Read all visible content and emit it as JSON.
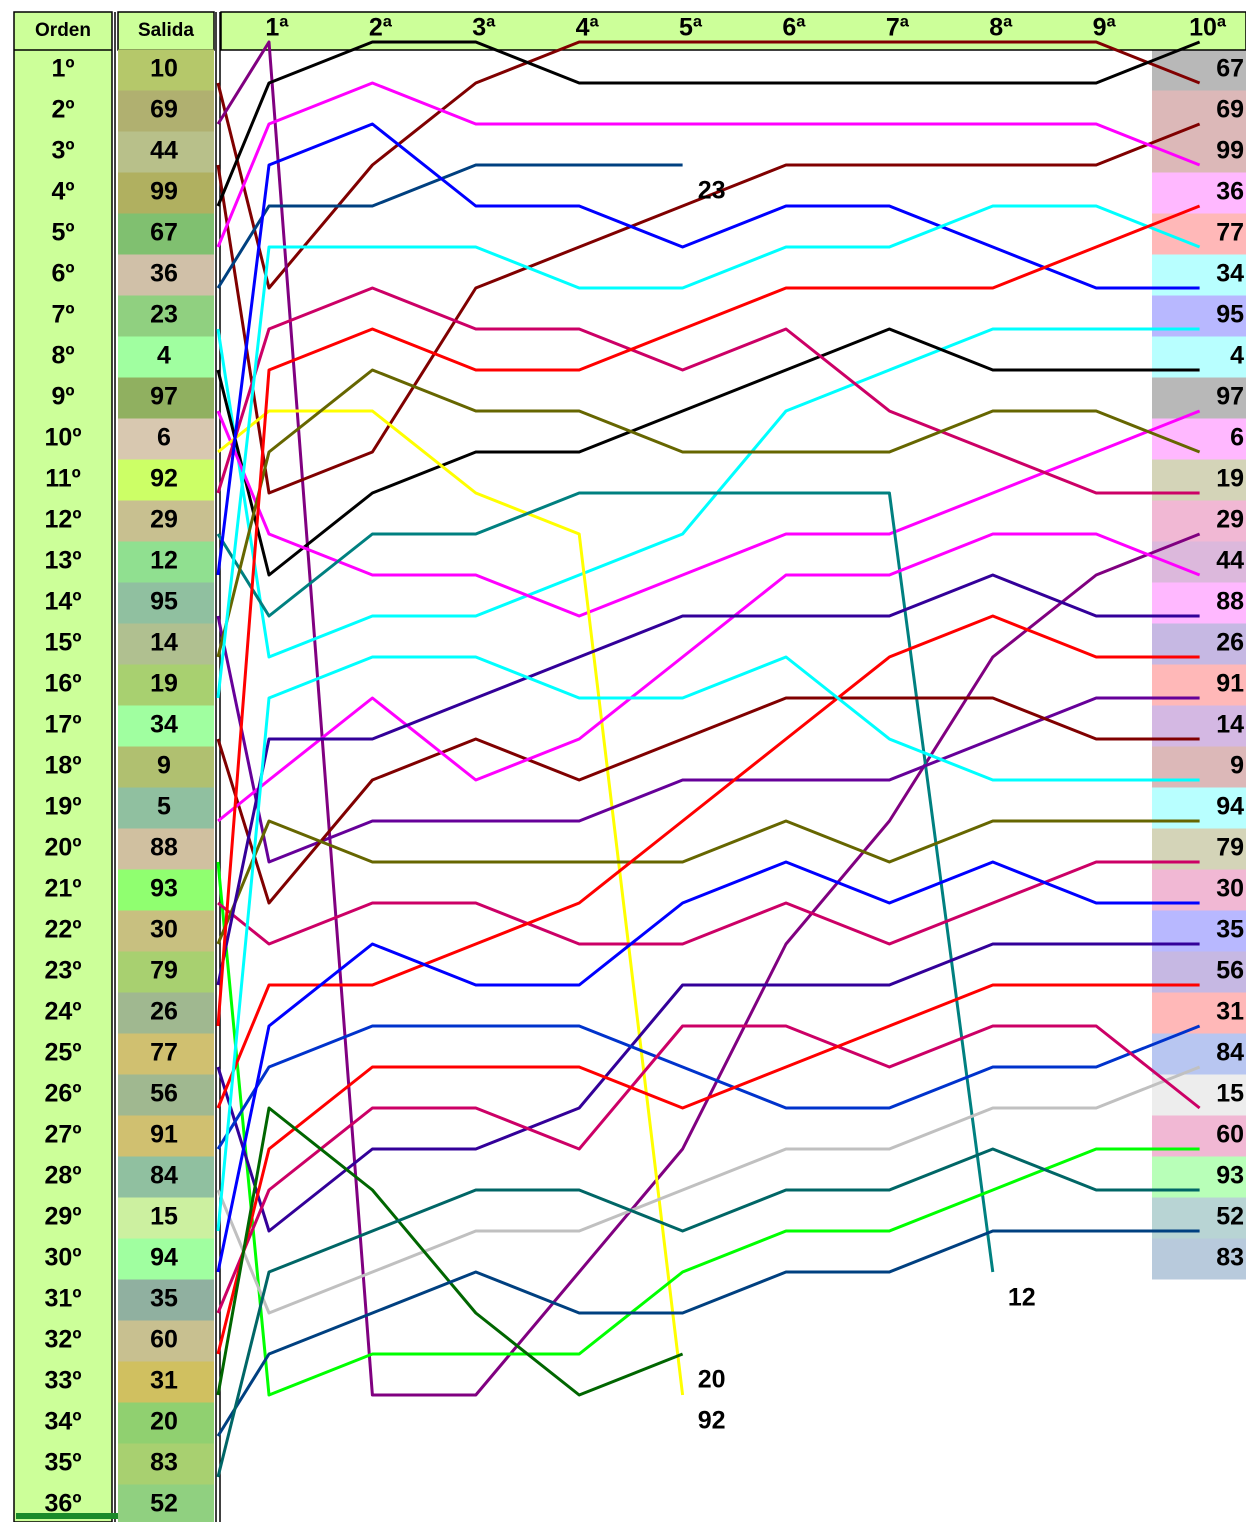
{
  "chart_data": {
    "type": "line",
    "column_headers": [
      "Orden",
      "Salida"
    ],
    "ranks": [
      "1º",
      "2º",
      "3º",
      "4º",
      "5º",
      "6º",
      "7º",
      "8º",
      "9º",
      "10º",
      "11º",
      "12º",
      "13º",
      "14º",
      "15º",
      "16º",
      "17º",
      "18º",
      "19º",
      "20º",
      "21º",
      "22º",
      "23º",
      "24º",
      "25º",
      "26º",
      "27º",
      "28º",
      "29º",
      "30º",
      "31º",
      "32º",
      "33º",
      "34º",
      "35º",
      "36º"
    ],
    "categories": [
      null,
      "1ª",
      "2ª",
      "3ª",
      "4ª",
      "5ª",
      "6ª",
      "7ª",
      "8ª",
      "9ª",
      "10ª"
    ],
    "series": [
      {
        "name": "10",
        "values": [
          1,
          null,
          null,
          null,
          null,
          null,
          null,
          null,
          null,
          null,
          null
        ]
      },
      {
        "name": "69",
        "color": "#800000",
        "values": [
          2,
          7,
          4,
          2,
          1,
          1,
          1,
          1,
          1,
          1,
          2
        ]
      },
      {
        "name": "44",
        "color": "#800080",
        "values": [
          3,
          1,
          34,
          34,
          31,
          28,
          23,
          20,
          16,
          14,
          13
        ]
      },
      {
        "name": "99",
        "color": "#800000",
        "values": [
          4,
          12,
          11,
          7,
          6,
          5,
          4,
          4,
          4,
          4,
          3
        ]
      },
      {
        "name": "67",
        "color": "#000000",
        "values": [
          5,
          2,
          1,
          1,
          2,
          2,
          2,
          2,
          2,
          2,
          1
        ]
      },
      {
        "name": "36",
        "color": "#ff00ff",
        "values": [
          6,
          3,
          2,
          3,
          3,
          3,
          3,
          3,
          3,
          3,
          4
        ]
      },
      {
        "name": "23",
        "color": "#004080",
        "values": [
          7,
          5,
          5,
          4,
          4,
          4,
          null,
          null,
          null,
          null,
          null
        ]
      },
      {
        "name": "4",
        "color": "#00ffff",
        "values": [
          8,
          16,
          15,
          15,
          14,
          13,
          10,
          9,
          8,
          8,
          8
        ]
      },
      {
        "name": "97",
        "color": "#000000",
        "values": [
          9,
          14,
          12,
          11,
          11,
          10,
          9,
          8,
          9,
          9,
          9
        ]
      },
      {
        "name": "6",
        "color": "#ff00ff",
        "values": [
          10,
          13,
          14,
          14,
          15,
          14,
          13,
          13,
          12,
          11,
          10
        ]
      },
      {
        "name": "92",
        "color": "#ffff00",
        "values": [
          11,
          10,
          10,
          12,
          13,
          34,
          null,
          null,
          null,
          null,
          null
        ]
      },
      {
        "name": "29",
        "color": "#cc0066",
        "values": [
          12,
          8,
          7,
          8,
          8,
          9,
          8,
          10,
          11,
          12,
          12
        ]
      },
      {
        "name": "12",
        "color": "#008080",
        "values": [
          13,
          15,
          13,
          13,
          12,
          12,
          12,
          12,
          31,
          null,
          null
        ]
      },
      {
        "name": "95",
        "color": "#0000ff",
        "values": [
          14,
          4,
          3,
          5,
          5,
          6,
          5,
          5,
          6,
          7,
          7
        ]
      },
      {
        "name": "14",
        "color": "#660099",
        "values": [
          15,
          21,
          20,
          20,
          20,
          19,
          19,
          19,
          18,
          17,
          17
        ]
      },
      {
        "name": "19",
        "color": "#666600",
        "values": [
          16,
          11,
          9,
          10,
          10,
          11,
          11,
          11,
          10,
          10,
          11
        ]
      },
      {
        "name": "34",
        "color": "#00ffff",
        "values": [
          17,
          6,
          6,
          6,
          7,
          7,
          6,
          6,
          5,
          5,
          6
        ]
      },
      {
        "name": "9",
        "color": "#800000",
        "values": [
          18,
          22,
          19,
          18,
          19,
          18,
          17,
          17,
          17,
          18,
          18
        ]
      },
      {
        "name": "5",
        "values": [
          19,
          null,
          null,
          null,
          null,
          null,
          null,
          null,
          null,
          null,
          null
        ]
      },
      {
        "name": "88",
        "color": "#ff00ff",
        "values": [
          20,
          19,
          17,
          19,
          18,
          16,
          14,
          14,
          13,
          13,
          14
        ]
      },
      {
        "name": "93",
        "color": "#00ff00",
        "values": [
          21,
          34,
          33,
          33,
          33,
          31,
          30,
          30,
          29,
          28,
          28
        ]
      },
      {
        "name": "30",
        "color": "#cc0066",
        "values": [
          22,
          23,
          22,
          22,
          23,
          23,
          22,
          23,
          22,
          21,
          21
        ]
      },
      {
        "name": "79",
        "color": "#666600",
        "values": [
          23,
          20,
          21,
          21,
          21,
          21,
          20,
          21,
          20,
          20,
          20
        ]
      },
      {
        "name": "26",
        "color": "#330099",
        "values": [
          24,
          18,
          18,
          17,
          16,
          15,
          15,
          15,
          14,
          15,
          15
        ]
      },
      {
        "name": "77",
        "color": "#ff0000",
        "values": [
          25,
          9,
          8,
          9,
          9,
          8,
          7,
          7,
          7,
          6,
          5
        ]
      },
      {
        "name": "56",
        "color": "#330099",
        "values": [
          26,
          30,
          28,
          28,
          27,
          24,
          24,
          24,
          23,
          23,
          23
        ]
      },
      {
        "name": "91",
        "color": "#ff0000",
        "values": [
          27,
          24,
          24,
          23,
          22,
          20,
          18,
          16,
          15,
          16,
          16
        ]
      },
      {
        "name": "84",
        "color": "#0033cc",
        "values": [
          28,
          26,
          25,
          25,
          25,
          26,
          27,
          27,
          26,
          26,
          25
        ]
      },
      {
        "name": "15",
        "color": "#c0c0c0",
        "values": [
          29,
          32,
          31,
          30,
          30,
          29,
          28,
          28,
          27,
          27,
          26
        ]
      },
      {
        "name": "94",
        "color": "#00ffff",
        "values": [
          30,
          17,
          16,
          16,
          17,
          17,
          16,
          18,
          19,
          19,
          19
        ]
      },
      {
        "name": "35",
        "color": "#0000ff",
        "values": [
          31,
          25,
          23,
          24,
          24,
          22,
          21,
          22,
          21,
          22,
          22
        ]
      },
      {
        "name": "60",
        "color": "#cc0066",
        "values": [
          32,
          29,
          27,
          27,
          28,
          25,
          25,
          26,
          25,
          25,
          27
        ]
      },
      {
        "name": "31",
        "color": "#ff0000",
        "values": [
          33,
          28,
          26,
          26,
          26,
          27,
          26,
          25,
          24,
          24,
          24
        ]
      },
      {
        "name": "20",
        "color": "#006600",
        "values": [
          34,
          27,
          29,
          32,
          34,
          33,
          null,
          null,
          null,
          null,
          null
        ]
      },
      {
        "name": "83",
        "color": "#004080",
        "values": [
          35,
          33,
          32,
          31,
          32,
          32,
          31,
          31,
          30,
          30,
          30
        ]
      },
      {
        "name": "52",
        "color": "#006666",
        "values": [
          36,
          31,
          30,
          29,
          29,
          30,
          29,
          29,
          28,
          29,
          29
        ]
      }
    ]
  }
}
